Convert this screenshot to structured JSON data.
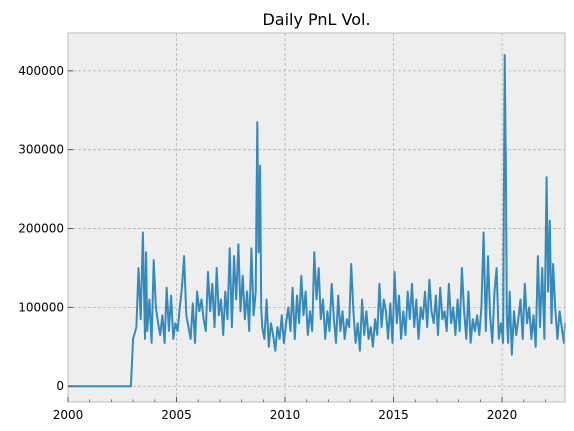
{
  "chart_data": {
    "type": "line",
    "title": "Daily PnL Vol.",
    "xlabel": "",
    "ylabel": "",
    "xlim": [
      2000,
      2022.9
    ],
    "ylim": [
      -20000,
      448000
    ],
    "x_ticks": [
      2000,
      2005,
      2010,
      2015,
      2020
    ],
    "x_tick_labels": [
      "2000",
      "2005",
      "2010",
      "2015",
      "2020"
    ],
    "y_ticks": [
      0,
      100000,
      200000,
      300000,
      400000
    ],
    "y_tick_labels": [
      "0",
      "100000",
      "200000",
      "300000",
      "400000"
    ],
    "grid": true,
    "legend": "none",
    "colors": {
      "line": "#348abd",
      "plot_bg": "#eeeeee",
      "grid": "#b2b2b2",
      "spine": "#bcbcbc"
    },
    "series": [
      {
        "x": [
          2000.0,
          2002.9,
          2003.0,
          2003.15,
          2003.25,
          2003.35,
          2003.45,
          2003.55,
          2003.6,
          2003.65,
          2003.75,
          2003.85,
          2003.95,
          2004.05,
          2004.15,
          2004.25,
          2004.35,
          2004.45,
          2004.55,
          2004.65,
          2004.75,
          2004.85,
          2004.95,
          2005.05,
          2005.15,
          2005.25,
          2005.35,
          2005.45,
          2005.55,
          2005.65,
          2005.75,
          2005.85,
          2005.95,
          2006.05,
          2006.15,
          2006.25,
          2006.35,
          2006.45,
          2006.55,
          2006.65,
          2006.75,
          2006.85,
          2006.95,
          2007.05,
          2007.15,
          2007.25,
          2007.35,
          2007.45,
          2007.55,
          2007.65,
          2007.75,
          2007.85,
          2007.95,
          2008.05,
          2008.15,
          2008.25,
          2008.35,
          2008.45,
          2008.55,
          2008.65,
          2008.72,
          2008.78,
          2008.85,
          2008.9,
          2008.95,
          2009.05,
          2009.15,
          2009.25,
          2009.35,
          2009.45,
          2009.55,
          2009.65,
          2009.75,
          2009.85,
          2009.95,
          2010.05,
          2010.15,
          2010.25,
          2010.35,
          2010.45,
          2010.55,
          2010.65,
          2010.75,
          2010.85,
          2010.95,
          2011.05,
          2011.15,
          2011.25,
          2011.35,
          2011.45,
          2011.55,
          2011.65,
          2011.75,
          2011.85,
          2011.95,
          2012.05,
          2012.15,
          2012.25,
          2012.35,
          2012.45,
          2012.55,
          2012.65,
          2012.75,
          2012.85,
          2012.95,
          2013.05,
          2013.15,
          2013.25,
          2013.35,
          2013.45,
          2013.55,
          2013.65,
          2013.75,
          2013.85,
          2013.95,
          2014.05,
          2014.15,
          2014.25,
          2014.35,
          2014.45,
          2014.55,
          2014.65,
          2014.75,
          2014.85,
          2014.95,
          2015.05,
          2015.15,
          2015.25,
          2015.35,
          2015.45,
          2015.55,
          2015.65,
          2015.75,
          2015.85,
          2015.95,
          2016.05,
          2016.15,
          2016.25,
          2016.35,
          2016.45,
          2016.55,
          2016.65,
          2016.75,
          2016.85,
          2016.95,
          2017.05,
          2017.15,
          2017.25,
          2017.35,
          2017.45,
          2017.55,
          2017.65,
          2017.75,
          2017.85,
          2017.95,
          2018.05,
          2018.15,
          2018.25,
          2018.35,
          2018.45,
          2018.55,
          2018.65,
          2018.75,
          2018.85,
          2018.95,
          2019.05,
          2019.15,
          2019.25,
          2019.35,
          2019.45,
          2019.55,
          2019.65,
          2019.75,
          2019.85,
          2019.95,
          2020.05,
          2020.12,
          2020.18,
          2020.22,
          2020.28,
          2020.35,
          2020.45,
          2020.55,
          2020.65,
          2020.75,
          2020.85,
          2020.95,
          2021.05,
          2021.15,
          2021.25,
          2021.35,
          2021.45,
          2021.55,
          2021.65,
          2021.75,
          2021.85,
          2021.95,
          2022.05,
          2022.12,
          2022.2,
          2022.28,
          2022.35,
          2022.45,
          2022.55,
          2022.65,
          2022.75,
          2022.85,
          2022.9
        ],
        "y": [
          0,
          0,
          60000,
          75000,
          150000,
          85000,
          195000,
          60000,
          170000,
          70000,
          110000,
          55000,
          160000,
          100000,
          80000,
          65000,
          90000,
          55000,
          125000,
          70000,
          115000,
          60000,
          80000,
          70000,
          100000,
          125000,
          165000,
          90000,
          75000,
          60000,
          105000,
          55000,
          120000,
          95000,
          110000,
          85000,
          70000,
          145000,
          95000,
          130000,
          75000,
          150000,
          90000,
          110000,
          65000,
          120000,
          85000,
          175000,
          75000,
          165000,
          110000,
          180000,
          95000,
          140000,
          85000,
          120000,
          70000,
          175000,
          90000,
          120000,
          335000,
          170000,
          280000,
          100000,
          75000,
          60000,
          110000,
          50000,
          80000,
          65000,
          45000,
          75000,
          60000,
          90000,
          55000,
          80000,
          100000,
          70000,
          125000,
          60000,
          115000,
          80000,
          140000,
          90000,
          120000,
          65000,
          95000,
          70000,
          170000,
          110000,
          150000,
          85000,
          110000,
          60000,
          95000,
          70000,
          130000,
          85000,
          55000,
          115000,
          70000,
          95000,
          60000,
          85000,
          75000,
          155000,
          95000,
          55000,
          80000,
          45000,
          110000,
          65000,
          95000,
          60000,
          75000,
          50000,
          85000,
          65000,
          130000,
          75000,
          110000,
          95000,
          60000,
          105000,
          55000,
          145000,
          80000,
          115000,
          60000,
          95000,
          65000,
          120000,
          85000,
          130000,
          75000,
          110000,
          60000,
          100000,
          85000,
          120000,
          75000,
          135000,
          95000,
          80000,
          115000,
          65000,
          125000,
          85000,
          95000,
          70000,
          130000,
          80000,
          100000,
          65000,
          110000,
          70000,
          150000,
          95000,
          60000,
          120000,
          55000,
          85000,
          70000,
          90000,
          65000,
          100000,
          195000,
          70000,
          165000,
          90000,
          55000,
          120000,
          150000,
          60000,
          80000,
          55000,
          420000,
          260000,
          90000,
          55000,
          120000,
          40000,
          95000,
          65000,
          85000,
          110000,
          60000,
          130000,
          80000,
          100000,
          60000,
          90000,
          50000,
          165000,
          75000,
          150000,
          60000,
          265000,
          120000,
          210000,
          80000,
          155000,
          100000,
          60000,
          95000,
          75000,
          55000,
          80000
        ]
      }
    ]
  }
}
